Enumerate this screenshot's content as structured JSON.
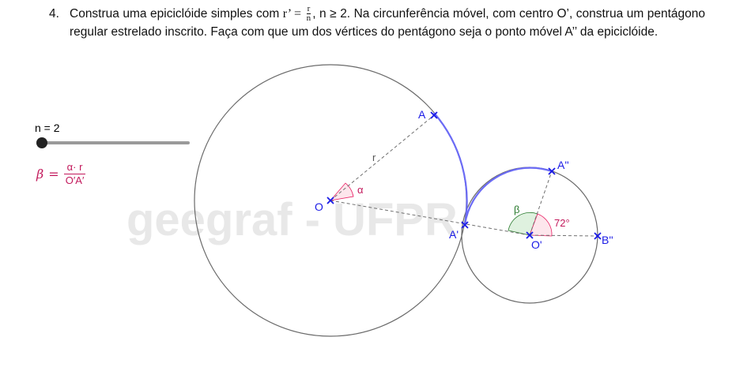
{
  "task": {
    "number": "4.",
    "part1": "Construa uma epiciclóide simples com ",
    "rprime": "r’ =",
    "frac_num": "r",
    "frac_den": "n",
    "part2": ", n ≥ 2. Na circunferência móvel, com centro O’, construa um pentágono regular estrelado inscrito. Faça com que um dos vértices do pentágono seja o ponto móvel A’’ da epiciclóide."
  },
  "slider": {
    "label": "n = 2",
    "value": 2
  },
  "formula": {
    "lhs": "β",
    "eq": "=",
    "numerator": "α· r",
    "denominator": "O′A′"
  },
  "watermark": "geegraf - UFPR",
  "labels": {
    "A": "A",
    "O": "O",
    "r": "r",
    "alpha": "α",
    "A_prime": "A'",
    "A_dprime": "A''",
    "beta": "β",
    "deg72": "72°",
    "O_prime": "O'",
    "B_dprime": "B''"
  },
  "colors": {
    "point": "#1a1ae6",
    "arc": "#6b6bf5",
    "circle": "#6a6a6a",
    "dashed": "#707070",
    "alpha_angle": "#e91e63",
    "beta_angle": "#2e7d32",
    "label_pink": "#c2185b",
    "watermark": "#e8e8e8"
  }
}
